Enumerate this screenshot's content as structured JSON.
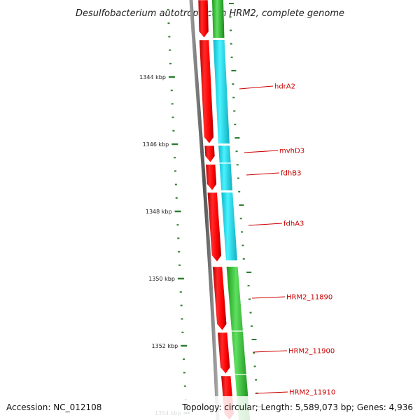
{
  "title": "Desulfobacterium autotrophicum HRM2, complete genome",
  "ticks": [
    {
      "label": "1344 kbp"
    },
    {
      "label": "1346 kbp"
    },
    {
      "label": "1348 kbp"
    },
    {
      "label": "1350 kbp"
    },
    {
      "label": "1352 kbp"
    },
    {
      "label": "1354 kbp"
    }
  ],
  "genes": [
    {
      "label": "hdrA2"
    },
    {
      "label": "mvhD3"
    },
    {
      "label": "fdhB3"
    },
    {
      "label": "fdhA3"
    },
    {
      "label": "HRM2_11890"
    },
    {
      "label": "HRM2_11900"
    },
    {
      "label": "HRM2_11910"
    }
  ],
  "footer": {
    "accession": "Accession: NC_012108",
    "summary": "Topology: circular; Length: 5,589,073 bp; Genes: 4,936"
  },
  "colors": {
    "backbone": "#7a7a7a",
    "gene_forward": "#ff0000",
    "cog_cyan": "#22e0ee",
    "cog_green": "#33cc33",
    "tick": "#2e7d32",
    "label_line": "#cc0000"
  }
}
